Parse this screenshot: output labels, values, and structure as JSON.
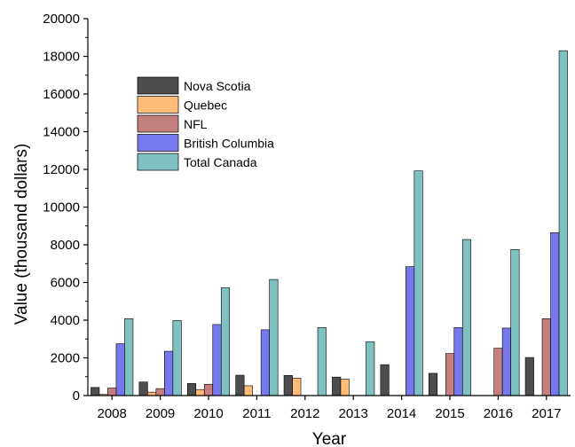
{
  "chart_data": {
    "type": "bar",
    "title": "",
    "xlabel": "Year",
    "ylabel": "Value (thousand dollars)",
    "ylim": [
      0,
      20000
    ],
    "yticks": [
      0,
      2000,
      4000,
      6000,
      8000,
      10000,
      12000,
      14000,
      16000,
      18000,
      20000
    ],
    "categories": [
      "2008",
      "2009",
      "2010",
      "2011",
      "2012",
      "2013",
      "2014",
      "2015",
      "2016",
      "2017"
    ],
    "series": [
      {
        "name": "Nova Scotia",
        "color": "#4d4d4d",
        "values": [
          430,
          720,
          640,
          1080,
          1070,
          980,
          1640,
          1180,
          0,
          2020
        ]
      },
      {
        "name": "Quebec",
        "color": "#ffbb78",
        "values": [
          60,
          180,
          320,
          520,
          920,
          870,
          0,
          0,
          0,
          0
        ]
      },
      {
        "name": "NFL",
        "color": "#c47f7f",
        "values": [
          400,
          370,
          600,
          0,
          0,
          0,
          0,
          2230,
          2510,
          4080
        ]
      },
      {
        "name": "British Columbia",
        "color": "#7777ee",
        "values": [
          2750,
          2350,
          3770,
          3490,
          0,
          0,
          6840,
          3610,
          3580,
          8640
        ]
      },
      {
        "name": "Total Canada",
        "color": "#7fc0c0",
        "values": [
          4080,
          3980,
          5720,
          6160,
          3610,
          2860,
          11920,
          8280,
          7750,
          18300
        ]
      }
    ],
    "legend_position": "top-left",
    "grid": false
  }
}
